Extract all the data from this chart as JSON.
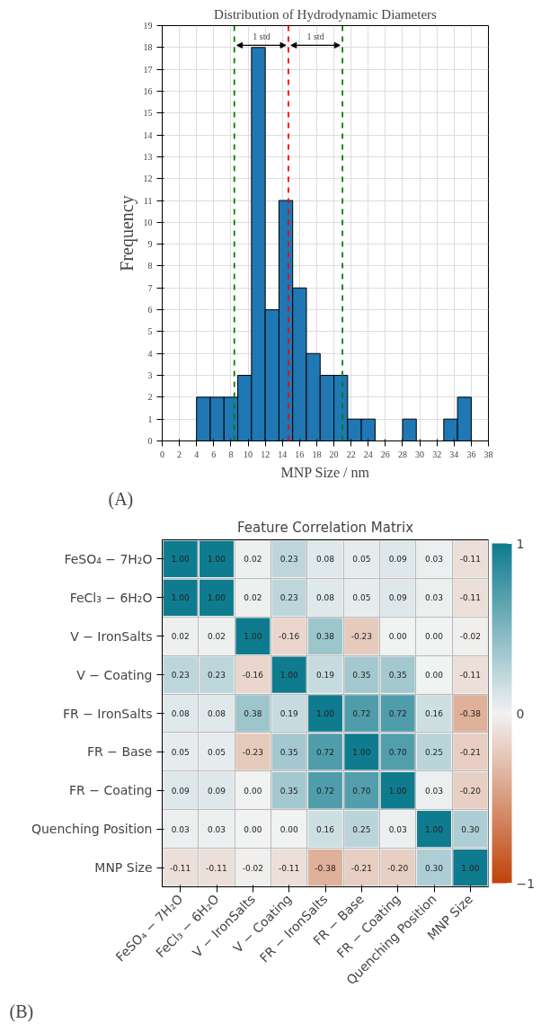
{
  "chart_data": [
    {
      "type": "histogram",
      "title": "Distribution of Hydrodynamic Diameters",
      "xlabel": "MNP Size / nm",
      "ylabel": "Frequency",
      "bins": [
        4,
        5.6,
        7.2,
        8.8,
        10.4,
        12,
        13.6,
        15.2,
        16.8,
        18.4,
        20,
        21.6,
        23.2,
        24.8,
        26.4,
        28,
        29.6,
        31.2,
        32.8,
        34.4,
        36
      ],
      "values": [
        2,
        2,
        2,
        3,
        18,
        6,
        11,
        7,
        4,
        3,
        3,
        1,
        1,
        0,
        0,
        1,
        0,
        0,
        1,
        2
      ],
      "color": "#1f77b4",
      "xlim": [
        0,
        38
      ],
      "xticks": [
        0,
        2,
        4,
        6,
        8,
        10,
        12,
        14,
        16,
        18,
        20,
        22,
        24,
        26,
        28,
        30,
        32,
        34,
        36,
        38
      ],
      "ylim": [
        0,
        19
      ],
      "yticks": [
        0,
        1,
        2,
        3,
        4,
        5,
        6,
        7,
        8,
        9,
        10,
        11,
        12,
        13,
        14,
        15,
        16,
        17,
        18,
        19
      ],
      "grid": true,
      "ref_lines": [
        {
          "axis": "x",
          "value": 8.4,
          "color": "#008000",
          "line_style": "dashed"
        },
        {
          "axis": "x",
          "value": 14.7,
          "color": "#ff0000",
          "line_style": "dashed"
        },
        {
          "axis": "x",
          "value": 21.0,
          "color": "#008000",
          "line_style": "dashed"
        }
      ],
      "annotations": [
        "1 std",
        "1 std",
        "(A)"
      ]
    },
    {
      "type": "heatmap",
      "title": "Feature Correlation Matrix",
      "categories": [
        "FeSO₄ − 7H₂O",
        "FeCl₃ − 6H₂O",
        "V − IronSalts",
        "V − Coating",
        "FR − IronSalts",
        "FR − Base",
        "FR − Coating",
        "Quenching Position",
        "MNP Size"
      ],
      "y_categories": [
        "FeSO₄ − 7H₂O",
        "FeCl₃ − 6H₂O",
        "V − IronSalts",
        "V − Coating",
        "FR − IronSalts",
        "FR − Base",
        "FR − Coating",
        "Quenching Position",
        "MNP Size"
      ],
      "cells": [
        [
          1.0,
          1.0,
          0.02,
          0.23,
          0.08,
          0.05,
          0.09,
          0.03,
          -0.11
        ],
        [
          1.0,
          1.0,
          0.02,
          0.23,
          0.08,
          0.05,
          0.09,
          0.03,
          -0.11
        ],
        [
          0.02,
          0.02,
          1.0,
          -0.16,
          0.38,
          -0.23,
          0.0,
          0.0,
          -0.02
        ],
        [
          0.23,
          0.23,
          -0.16,
          1.0,
          0.19,
          0.35,
          0.35,
          0.0,
          -0.11
        ],
        [
          0.08,
          0.08,
          0.38,
          0.19,
          1.0,
          0.72,
          0.72,
          0.16,
          -0.38
        ],
        [
          0.05,
          0.05,
          -0.23,
          0.35,
          0.72,
          1.0,
          0.7,
          0.25,
          -0.21
        ],
        [
          0.09,
          0.09,
          0.0,
          0.35,
          0.72,
          0.7,
          1.0,
          0.03,
          -0.2
        ],
        [
          0.03,
          0.03,
          0.0,
          0.0,
          0.16,
          0.25,
          0.03,
          1.0,
          0.3
        ],
        [
          -0.11,
          -0.11,
          -0.02,
          -0.11,
          -0.38,
          -0.21,
          -0.2,
          0.3,
          1.0
        ]
      ],
      "cell_labels": [
        [
          "1.00",
          "1.00",
          "0.02",
          "0.23",
          "0.08",
          "0.05",
          "0.09",
          "0.03",
          "-0.11"
        ],
        [
          "1.00",
          "1.00",
          "0.02",
          "0.23",
          "0.08",
          "0.05",
          "0.09",
          "0.03",
          "-0.11"
        ],
        [
          "0.02",
          "0.02",
          "1.00",
          "-0.16",
          "0.38",
          "-0.23",
          "0.00",
          "0.00",
          "-0.02"
        ],
        [
          "0.23",
          "0.23",
          "-0.16",
          "1.00",
          "0.19",
          "0.35",
          "0.35",
          "0.00",
          "-0.11"
        ],
        [
          "0.08",
          "0.08",
          "0.38",
          "0.19",
          "1.00",
          "0.72",
          "0.72",
          "0.16",
          "-0.38"
        ],
        [
          "0.05",
          "0.05",
          "-0.23",
          "0.35",
          "0.72",
          "1.00",
          "0.70",
          "0.25",
          "-0.21"
        ],
        [
          "0.09",
          "0.09",
          "0.00",
          "0.35",
          "0.72",
          "0.70",
          "1.00",
          "0.03",
          "-0.20"
        ],
        [
          "0.03",
          "0.03",
          "0.00",
          "0.00",
          "0.16",
          "0.25",
          "0.03",
          "1.00",
          "0.30"
        ],
        [
          "-0.11",
          "-0.11",
          "-0.02",
          "-0.11",
          "-0.38",
          "-0.21",
          "-0.20",
          "0.30",
          "1.00"
        ]
      ],
      "colors": [
        "#c0440a",
        "#f2f2f2",
        "#0f7b8f"
      ],
      "clim": [
        -1,
        1
      ],
      "cticks": [
        {
          "value": -1,
          "label": "−1"
        },
        0,
        1
      ],
      "annotations": [
        "(B)"
      ]
    }
  ]
}
